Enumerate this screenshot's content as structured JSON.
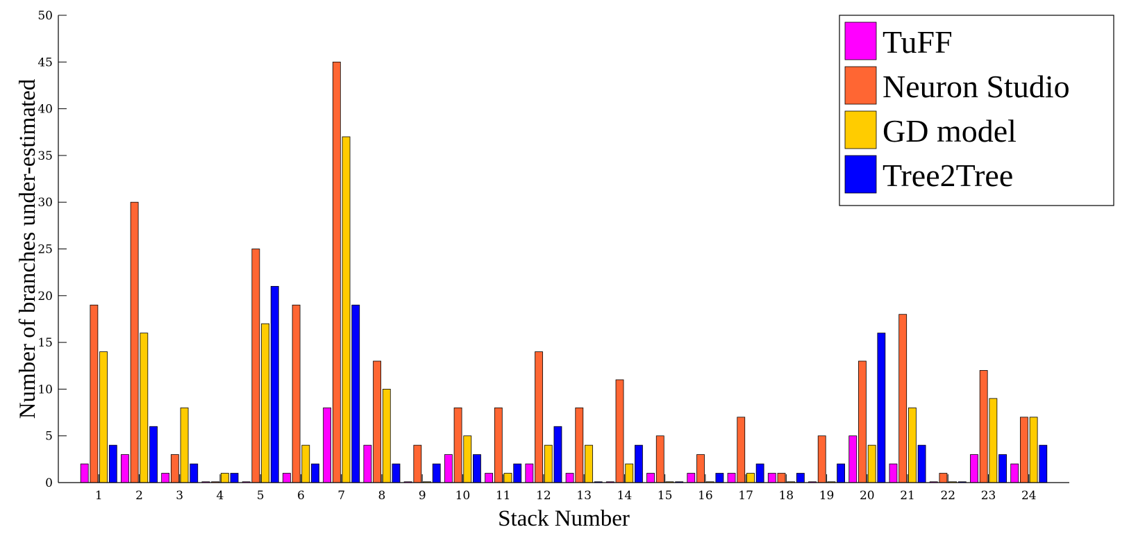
{
  "chart_data": {
    "type": "bar",
    "xlabel": "Stack Number",
    "ylabel": "Number of branches under-estimated",
    "categories": [
      "1",
      "2",
      "3",
      "4",
      "5",
      "6",
      "7",
      "8",
      "9",
      "10",
      "11",
      "12",
      "13",
      "14",
      "15",
      "16",
      "17",
      "18",
      "19",
      "20",
      "21",
      "22",
      "23",
      "24"
    ],
    "ylim": [
      0,
      50
    ],
    "yticks": [
      0,
      5,
      10,
      15,
      20,
      25,
      30,
      35,
      40,
      45,
      50
    ],
    "grid": false,
    "legend_position": "top-right",
    "series": [
      {
        "name": "TuFF",
        "color": "#ff00ff",
        "values": [
          2,
          3,
          1,
          0,
          0,
          1,
          8,
          4,
          0,
          3,
          1,
          2,
          1,
          0,
          1,
          1,
          1,
          1,
          0,
          5,
          2,
          0,
          3,
          2
        ]
      },
      {
        "name": "Neuron Studio",
        "color": "#ff6633",
        "values": [
          19,
          30,
          3,
          0,
          25,
          19,
          45,
          13,
          4,
          8,
          8,
          14,
          8,
          11,
          5,
          3,
          7,
          1,
          5,
          13,
          18,
          1,
          12,
          7
        ]
      },
      {
        "name": "GD model",
        "color": "#ffcc00",
        "values": [
          14,
          16,
          8,
          1,
          17,
          4,
          37,
          10,
          0,
          5,
          1,
          4,
          4,
          2,
          0,
          0,
          1,
          0,
          0,
          4,
          8,
          0,
          9,
          7
        ]
      },
      {
        "name": "Tree2Tree",
        "color": "#0000ff",
        "values": [
          4,
          6,
          2,
          1,
          21,
          2,
          19,
          2,
          2,
          3,
          2,
          6,
          0,
          4,
          0,
          1,
          2,
          1,
          2,
          16,
          4,
          0,
          3,
          4
        ]
      }
    ]
  }
}
